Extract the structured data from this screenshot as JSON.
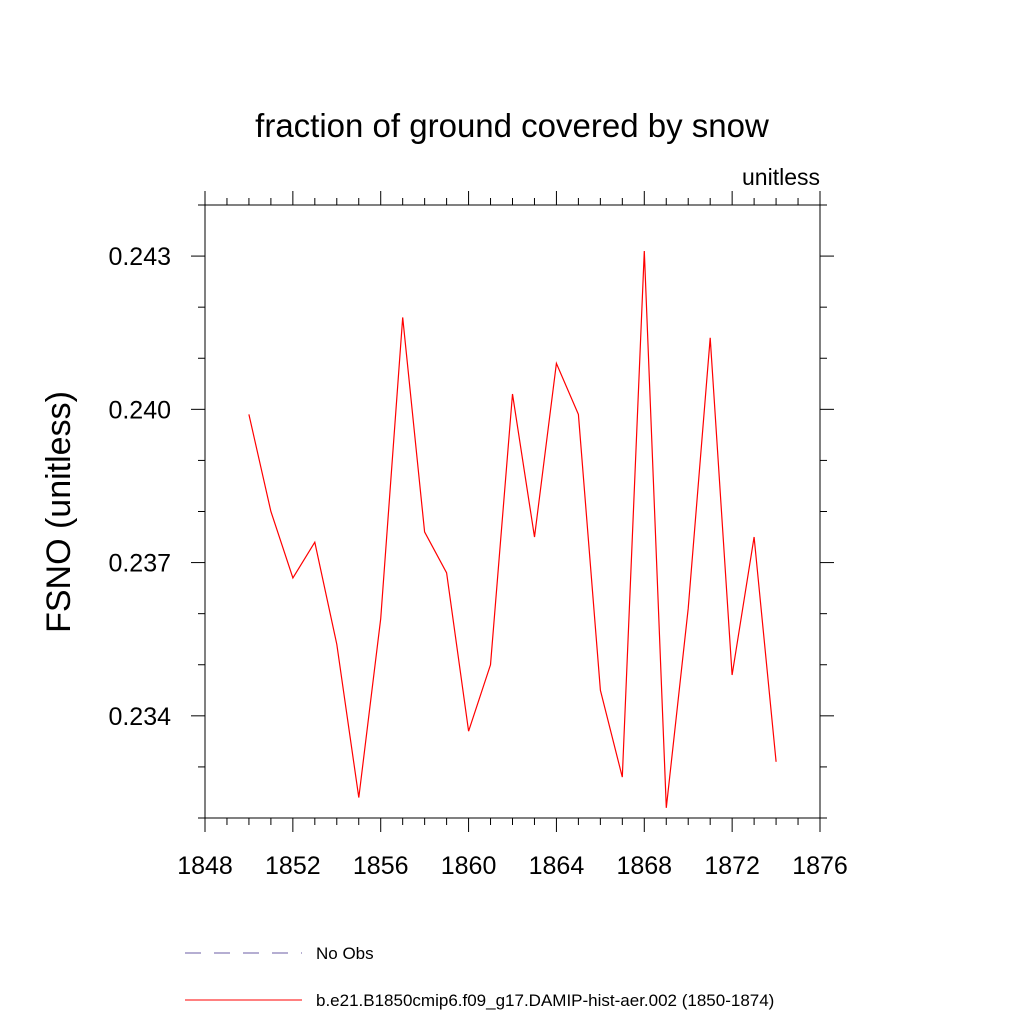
{
  "chart_data": {
    "type": "line",
    "title": "fraction of ground covered by snow",
    "units_label": "unitless",
    "ylabel": "FSNO  (unitless)",
    "xlabel": "",
    "xlim": [
      1848,
      1876
    ],
    "ylim": [
      0.232,
      0.244
    ],
    "x_ticks": [
      1848,
      1852,
      1856,
      1860,
      1864,
      1868,
      1872,
      1876
    ],
    "x_tick_labels": [
      "1848",
      "1852",
      "1856",
      "1860",
      "1864",
      "1868",
      "1872",
      "1876"
    ],
    "y_ticks": [
      0.234,
      0.237,
      0.24,
      0.243
    ],
    "y_tick_labels": [
      "0.234",
      "0.237",
      "0.240",
      "0.243"
    ],
    "grid": false,
    "legend_position": "bottom",
    "series": [
      {
        "name": "b.e21.B1850cmip6.f09_g17.DAMIP-hist-aer.002 (1850-1874)",
        "color": "#ff0000",
        "style": "solid",
        "x": [
          1850,
          1851,
          1852,
          1853,
          1854,
          1855,
          1856,
          1857,
          1858,
          1859,
          1860,
          1861,
          1862,
          1863,
          1864,
          1865,
          1866,
          1867,
          1868,
          1869,
          1870,
          1871,
          1872,
          1873,
          1874
        ],
        "y": [
          0.2399,
          0.238,
          0.2367,
          0.2374,
          0.2354,
          0.2324,
          0.2359,
          0.2418,
          0.2376,
          0.2368,
          0.2337,
          0.235,
          0.2403,
          0.2375,
          0.2409,
          0.2399,
          0.2345,
          0.2328,
          0.2431,
          0.2322,
          0.2361,
          0.2414,
          0.2348,
          0.2375,
          0.2331
        ]
      }
    ],
    "legend": [
      {
        "label": "No Obs",
        "color": "#6b5ca5",
        "style": "dashed"
      },
      {
        "label": "b.e21.B1850cmip6.f09_g17.DAMIP-hist-aer.002 (1850-1874)",
        "color": "#ff0000",
        "style": "solid"
      }
    ]
  }
}
